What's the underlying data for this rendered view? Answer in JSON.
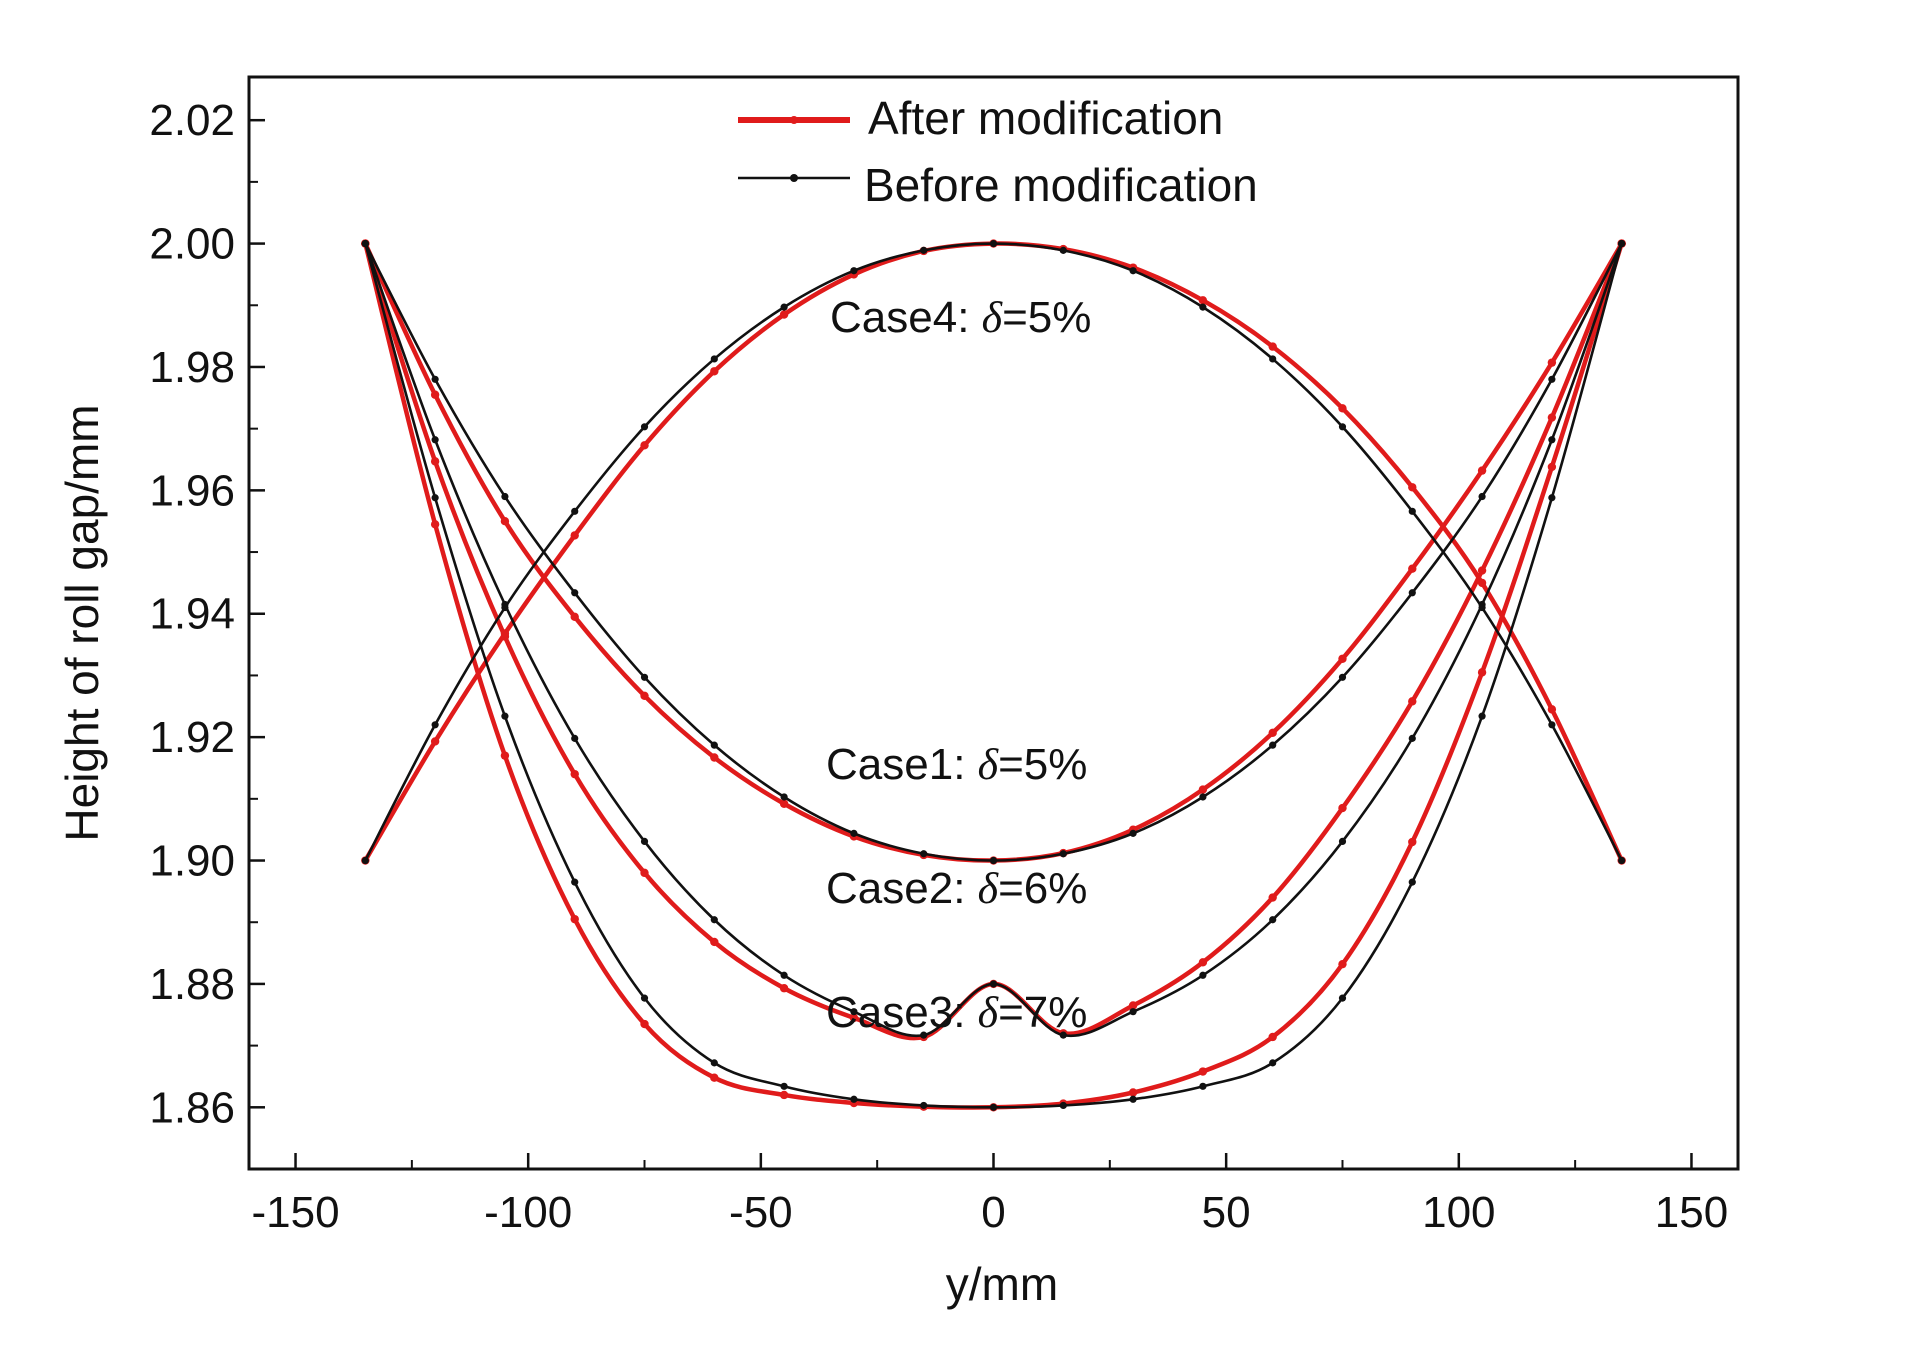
{
  "chart_data": {
    "type": "line",
    "title": "",
    "xlabel": "y/mm",
    "ylabel": "Height of roll gap/mm",
    "xlim": [
      -160,
      160
    ],
    "ylim": [
      1.85,
      2.027
    ],
    "xticks": [
      -150,
      -100,
      -50,
      0,
      50,
      100,
      150
    ],
    "xtick_labels": [
      "-150",
      "-100",
      "-50",
      "0",
      "50",
      "100",
      "150"
    ],
    "yticks": [
      1.86,
      1.88,
      1.9,
      1.92,
      1.94,
      1.96,
      1.98,
      2.0,
      2.02
    ],
    "ytick_labels": [
      "1.86",
      "1.88",
      "1.90",
      "1.92",
      "1.94",
      "1.96",
      "1.98",
      "2.00",
      "2.02"
    ],
    "grid": false,
    "legend_position": "top-center",
    "series_styles": {
      "after": {
        "name": "After modification",
        "color": "#e01b1b"
      },
      "before": {
        "name": "Before modification",
        "color": "#111111"
      }
    },
    "cases": [
      {
        "id": "case1",
        "label_prefix": "Case1:",
        "delta_symbol": "δ",
        "label_value": "=5%",
        "x": [
          -135,
          -120,
          -105,
          -90,
          -75,
          -60,
          -45,
          -30,
          -15,
          0,
          15,
          30,
          45,
          60,
          75,
          90,
          105,
          120,
          135
        ],
        "before": [
          2.0,
          1.978,
          1.959,
          1.9434,
          1.9297,
          1.9187,
          1.9103,
          1.9044,
          1.9011,
          1.9,
          1.9011,
          1.9044,
          1.9103,
          1.9187,
          1.9297,
          1.9434,
          1.959,
          1.978,
          2.0
        ],
        "after": [
          2.0,
          1.9755,
          1.955,
          1.9395,
          1.9267,
          1.9167,
          1.9092,
          1.9039,
          1.9009,
          1.9,
          1.9012,
          1.905,
          1.9115,
          1.9207,
          1.9327,
          1.9473,
          1.9632,
          1.9807,
          2.0
        ]
      },
      {
        "id": "case2",
        "label_prefix": "Case2:",
        "delta_symbol": "δ",
        "label_value": "=6%",
        "x": [
          -135,
          -120,
          -105,
          -90,
          -75,
          -60,
          -45,
          -30,
          -15,
          0,
          15,
          30,
          45,
          60,
          75,
          90,
          105,
          120,
          135
        ],
        "before": [
          2.0,
          1.9682,
          1.9415,
          1.9198,
          1.9031,
          1.8904,
          1.8814,
          1.8755,
          1.8717,
          1.88,
          1.8717,
          1.8755,
          1.8814,
          1.8904,
          1.9031,
          1.9198,
          1.9415,
          1.9682,
          2.0
        ],
        "after": [
          2.0,
          1.9647,
          1.9363,
          1.914,
          1.898,
          1.8868,
          1.8793,
          1.8745,
          1.8714,
          1.88,
          1.872,
          1.8765,
          1.8835,
          1.894,
          1.9085,
          1.9258,
          1.947,
          1.9718,
          2.0
        ]
      },
      {
        "id": "case3",
        "label_prefix": "Case3:",
        "delta_symbol": "δ",
        "label_value": "=7%",
        "x": [
          -135,
          -120,
          -105,
          -90,
          -75,
          -60,
          -45,
          -30,
          -15,
          0,
          15,
          30,
          45,
          60,
          75,
          90,
          105,
          120,
          135
        ],
        "before": [
          2.0,
          1.9588,
          1.9234,
          1.8965,
          1.8777,
          1.8672,
          1.8634,
          1.8613,
          1.8603,
          1.86,
          1.8603,
          1.8613,
          1.8634,
          1.8672,
          1.8777,
          1.8965,
          1.9234,
          1.9588,
          2.0
        ],
        "after": [
          2.0,
          1.9545,
          1.917,
          1.8905,
          1.8735,
          1.8648,
          1.862,
          1.8607,
          1.8601,
          1.86,
          1.8606,
          1.8624,
          1.8658,
          1.8714,
          1.8832,
          1.903,
          1.9305,
          1.9638,
          2.0
        ]
      },
      {
        "id": "case4",
        "label_prefix": "Case4:",
        "delta_symbol": "δ",
        "label_value": "=5%",
        "x": [
          -135,
          -120,
          -105,
          -90,
          -75,
          -60,
          -45,
          -30,
          -15,
          0,
          15,
          30,
          45,
          60,
          75,
          90,
          105,
          120,
          135
        ],
        "before": [
          1.9,
          1.922,
          1.941,
          1.9566,
          1.9703,
          1.9813,
          1.9897,
          1.9956,
          1.9989,
          2.0,
          1.9989,
          1.9956,
          1.9897,
          1.9813,
          1.9703,
          1.9566,
          1.941,
          1.922,
          1.9
        ],
        "after": [
          1.9,
          1.9193,
          1.9368,
          1.9527,
          1.9673,
          1.9793,
          1.9885,
          1.995,
          1.9988,
          2.0,
          1.9991,
          1.9961,
          1.9908,
          1.9833,
          1.9733,
          1.9605,
          1.945,
          1.9245,
          1.9
        ]
      }
    ]
  }
}
